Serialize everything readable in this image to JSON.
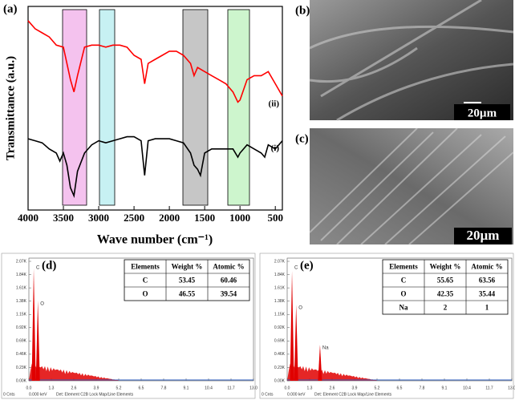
{
  "chart_data": [
    {
      "type": "line",
      "panel": "(a)",
      "x_label": "Wave number (cm⁻¹)",
      "y_label": "Transmittance (a.u.)",
      "xlim": [
        4000,
        400
      ],
      "xticks": [
        4000,
        3500,
        3000,
        2500,
        2000,
        1500,
        1000,
        500
      ],
      "ylim": [
        0,
        100
      ],
      "series": [
        {
          "name": "(ii)",
          "color": "#ff0000",
          "x": [
            4000,
            3900,
            3800,
            3700,
            3600,
            3500,
            3450,
            3400,
            3350,
            3300,
            3200,
            3100,
            3000,
            2900,
            2800,
            2700,
            2600,
            2500,
            2400,
            2350,
            2300,
            2200,
            2100,
            2000,
            1900,
            1800,
            1700,
            1650,
            1600,
            1500,
            1400,
            1300,
            1200,
            1100,
            1030,
            1000,
            900,
            800,
            700,
            600,
            500,
            400
          ],
          "values": [
            93,
            89,
            87,
            85,
            81,
            80,
            72,
            64,
            58,
            66,
            80,
            81,
            81,
            80,
            81,
            81,
            80,
            76,
            74,
            62,
            72,
            74,
            76,
            78,
            78,
            76,
            72,
            66,
            70,
            68,
            66,
            64,
            62,
            58,
            53,
            54,
            64,
            66,
            66,
            68,
            62,
            56
          ]
        },
        {
          "name": "(i)",
          "color": "#000000",
          "x": [
            4000,
            3900,
            3800,
            3700,
            3600,
            3550,
            3500,
            3450,
            3400,
            3350,
            3300,
            3200,
            3100,
            3000,
            2900,
            2800,
            2700,
            2600,
            2500,
            2400,
            2350,
            2300,
            2200,
            2100,
            2000,
            1900,
            1800,
            1700,
            1650,
            1600,
            1560,
            1500,
            1400,
            1300,
            1200,
            1100,
            1030,
            1000,
            900,
            800,
            700,
            650,
            600,
            500,
            400
          ],
          "values": [
            35,
            34,
            33,
            30,
            28,
            24,
            28,
            22,
            11,
            7,
            19,
            28,
            32,
            34,
            33,
            34,
            35,
            36,
            36,
            34,
            17,
            34,
            35,
            35,
            35,
            34,
            33,
            28,
            22,
            20,
            17,
            28,
            30,
            30,
            30,
            30,
            26,
            28,
            32,
            30,
            28,
            26,
            32,
            30,
            34
          ]
        }
      ]
    },
    {
      "type": "spectrum",
      "panel": "(d)",
      "ylim": [
        0,
        2070
      ],
      "xlim": [
        0,
        13
      ],
      "yticks": [
        {
          "value": 2070,
          "label": "2.07K"
        },
        {
          "value": 1840,
          "label": "1.84K"
        },
        {
          "value": 1610,
          "label": "1.61K"
        },
        {
          "value": 1380,
          "label": "1.38K"
        },
        {
          "value": 1150,
          "label": "1.15K"
        },
        {
          "value": 920,
          "label": "0.92K"
        },
        {
          "value": 690,
          "label": "0.69K"
        },
        {
          "value": 460,
          "label": "0.46K"
        },
        {
          "value": 230,
          "label": "0.23K"
        },
        {
          "value": 0,
          "label": "0.00K"
        }
      ],
      "xticks": [
        {
          "value": 0,
          "label": "0.0"
        },
        {
          "value": 1.3,
          "label": "1.3"
        },
        {
          "value": 2.6,
          "label": "2.6"
        },
        {
          "value": 3.9,
          "label": "3.9"
        },
        {
          "value": 5.2,
          "label": "5.2"
        },
        {
          "value": 6.5,
          "label": "6.5"
        },
        {
          "value": 7.8,
          "label": "7.8"
        },
        {
          "value": 9.1,
          "label": "9.1"
        },
        {
          "value": 10.4,
          "label": "10.4"
        },
        {
          "value": 11.7,
          "label": "11.7"
        },
        {
          "value": 13,
          "label": "13.0"
        }
      ],
      "footer": [
        "0 Cnts",
        "0.000 keV",
        "Det: Element C2B Lock Map/Line Elements"
      ],
      "peaks": [
        {
          "label": "C",
          "x": 0.28,
          "value": 1945
        },
        {
          "label": "O",
          "x": 0.52,
          "value": 1390
        }
      ],
      "table": {
        "header": [
          "Elements",
          "Weight %",
          "Atomic %"
        ],
        "rows": [
          [
            "C",
            "53.45",
            "60.46"
          ],
          [
            "O",
            "46.55",
            "39.54"
          ]
        ]
      }
    },
    {
      "type": "spectrum",
      "panel": "(e)",
      "ylim": [
        0,
        2070
      ],
      "xlim": [
        0,
        13
      ],
      "yticks": [
        {
          "value": 2070,
          "label": "2.07K"
        },
        {
          "value": 1840,
          "label": "1.84K"
        },
        {
          "value": 1610,
          "label": "1.61K"
        },
        {
          "value": 1380,
          "label": "1.38K"
        },
        {
          "value": 1150,
          "label": "1.15K"
        },
        {
          "value": 920,
          "label": "0.92K"
        },
        {
          "value": 690,
          "label": "0.69K"
        },
        {
          "value": 460,
          "label": "0.46K"
        },
        {
          "value": 230,
          "label": "0.23K"
        },
        {
          "value": 0,
          "label": "0.00K"
        }
      ],
      "xticks": [
        {
          "value": 0,
          "label": "0.0"
        },
        {
          "value": 1.3,
          "label": "1.3"
        },
        {
          "value": 2.6,
          "label": "2.6"
        },
        {
          "value": 3.9,
          "label": "3.9"
        },
        {
          "value": 5.2,
          "label": "5.2"
        },
        {
          "value": 6.5,
          "label": "6.5"
        },
        {
          "value": 7.8,
          "label": "7.8"
        },
        {
          "value": 9.1,
          "label": "9.1"
        },
        {
          "value": 10.4,
          "label": "10.4"
        },
        {
          "value": 11.7,
          "label": "11.7"
        },
        {
          "value": 13,
          "label": "13.0"
        }
      ],
      "footer": [
        "0 Cnts",
        "0.000 keV",
        "Det: Element C2B Lock Map/Line Elements"
      ],
      "peaks": [
        {
          "label": "C",
          "x": 0.28,
          "value": 1900
        },
        {
          "label": "O",
          "x": 0.52,
          "value": 1320
        },
        {
          "label": "Na",
          "x": 1.9,
          "value": 625
        }
      ],
      "table": {
        "header": [
          "Elements",
          "Weight %",
          "Atomic %"
        ],
        "rows": [
          [
            "C",
            "55.65",
            "63.56"
          ],
          [
            "O",
            "42.35",
            "35.44"
          ],
          [
            "Na",
            "2",
            "1"
          ]
        ]
      }
    }
  ],
  "images": [
    {
      "label": "(b)",
      "scale_bar": "20µm"
    },
    {
      "label": "(c)",
      "scale_bar": "20µm"
    }
  ]
}
